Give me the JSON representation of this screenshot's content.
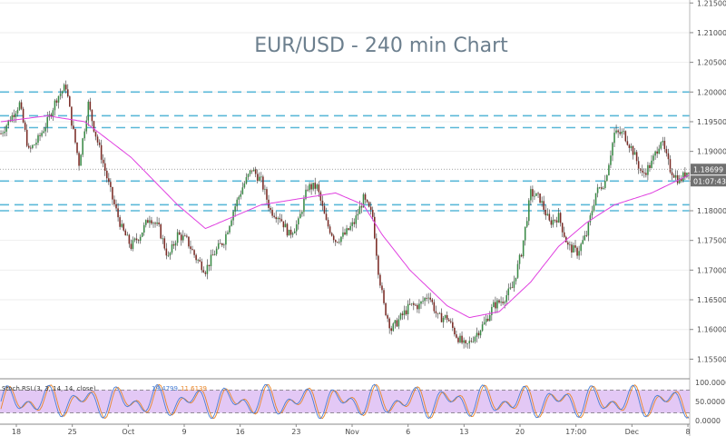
{
  "chart_data": {
    "type": "candlestick",
    "title": "EUR/USD - 240 min Chart",
    "y_range": [
      1.152,
      1.2155
    ],
    "y_ticks": [
      "1.21500",
      "1.21000",
      "1.20500",
      "1.20000",
      "1.19500",
      "1.19000",
      "1.18500",
      "1.18000",
      "1.17500",
      "1.17000",
      "1.16500",
      "1.16000",
      "1.15500"
    ],
    "x_ticks": [
      "18",
      "25",
      "Oct",
      "9",
      "16",
      "23",
      "Nov",
      "6",
      "13",
      "20",
      "17:00",
      "Dec",
      "8"
    ],
    "price_tag": "1.18699",
    "time_tag": "01:07:43",
    "current_price": 1.187,
    "support_resistance_levels": [
      1.2,
      1.196,
      1.194,
      1.185,
      1.181,
      1.18
    ],
    "price_path_anchors": [
      [
        0,
        1.193
      ],
      [
        10,
        1.198
      ],
      [
        15,
        1.19
      ],
      [
        20,
        1.192
      ],
      [
        25,
        1.195
      ],
      [
        30,
        1.199
      ],
      [
        35,
        1.201
      ],
      [
        38,
        1.195
      ],
      [
        42,
        1.188
      ],
      [
        47,
        1.198
      ],
      [
        50,
        1.194
      ],
      [
        55,
        1.188
      ],
      [
        60,
        1.182
      ],
      [
        65,
        1.177
      ],
      [
        70,
        1.174
      ],
      [
        75,
        1.176
      ],
      [
        80,
        1.179
      ],
      [
        85,
        1.177
      ],
      [
        90,
        1.172
      ],
      [
        95,
        1.176
      ],
      [
        100,
        1.175
      ],
      [
        105,
        1.172
      ],
      [
        110,
        1.17
      ],
      [
        115,
        1.173
      ],
      [
        120,
        1.175
      ],
      [
        125,
        1.18
      ],
      [
        130,
        1.184
      ],
      [
        135,
        1.187
      ],
      [
        140,
        1.185
      ],
      [
        145,
        1.18
      ],
      [
        150,
        1.179
      ],
      [
        155,
        1.176
      ],
      [
        160,
        1.178
      ],
      [
        165,
        1.184
      ],
      [
        170,
        1.184
      ],
      [
        175,
        1.178
      ],
      [
        180,
        1.175
      ],
      [
        185,
        1.176
      ],
      [
        190,
        1.178
      ],
      [
        195,
        1.182
      ],
      [
        200,
        1.179
      ],
      [
        203,
        1.17
      ],
      [
        206,
        1.164
      ],
      [
        210,
        1.16
      ],
      [
        215,
        1.162
      ],
      [
        220,
        1.164
      ],
      [
        225,
        1.164
      ],
      [
        230,
        1.166
      ],
      [
        235,
        1.162
      ],
      [
        240,
        1.162
      ],
      [
        245,
        1.159
      ],
      [
        250,
        1.157
      ],
      [
        255,
        1.159
      ],
      [
        260,
        1.161
      ],
      [
        265,
        1.164
      ],
      [
        270,
        1.165
      ],
      [
        275,
        1.167
      ],
      [
        280,
        1.173
      ],
      [
        285,
        1.183
      ],
      [
        290,
        1.182
      ],
      [
        295,
        1.178
      ],
      [
        300,
        1.179
      ],
      [
        305,
        1.174
      ],
      [
        310,
        1.173
      ],
      [
        315,
        1.176
      ],
      [
        320,
        1.183
      ],
      [
        325,
        1.185
      ],
      [
        330,
        1.193
      ],
      [
        335,
        1.193
      ],
      [
        340,
        1.19
      ],
      [
        345,
        1.186
      ],
      [
        350,
        1.188
      ],
      [
        355,
        1.192
      ],
      [
        360,
        1.187
      ],
      [
        365,
        1.185
      ],
      [
        370,
        1.187
      ]
    ],
    "ma_anchors": [
      [
        0,
        1.195
      ],
      [
        25,
        1.196
      ],
      [
        45,
        1.195
      ],
      [
        70,
        1.189
      ],
      [
        95,
        1.181
      ],
      [
        110,
        1.177
      ],
      [
        125,
        1.179
      ],
      [
        140,
        1.181
      ],
      [
        160,
        1.182
      ],
      [
        180,
        1.183
      ],
      [
        195,
        1.181
      ],
      [
        205,
        1.176
      ],
      [
        220,
        1.17
      ],
      [
        240,
        1.164
      ],
      [
        252,
        1.162
      ],
      [
        268,
        1.163
      ],
      [
        285,
        1.168
      ],
      [
        300,
        1.174
      ],
      [
        315,
        1.178
      ],
      [
        330,
        1.181
      ],
      [
        350,
        1.183
      ],
      [
        370,
        1.186
      ]
    ],
    "indicator": {
      "label": "Stoch RSI (3, 3, 14, 14, close)",
      "value1": "19.4799",
      "value2": "11.6139",
      "y_ticks": [
        "100.0000",
        "50.0000",
        "0.0000"
      ],
      "upper_band": 80,
      "lower_band": 20
    }
  },
  "colors": {
    "up_candle": "#3a8a46",
    "down_candle": "#7a2b25",
    "wick": "#333333",
    "moving_average": "#e040e0",
    "levels": "#5ab8d8",
    "price_tag_bg": "#707070",
    "stoch_k": "#4a7fd4",
    "stoch_d": "#e8862a",
    "stoch_band_fill": "#e3c8f5"
  }
}
